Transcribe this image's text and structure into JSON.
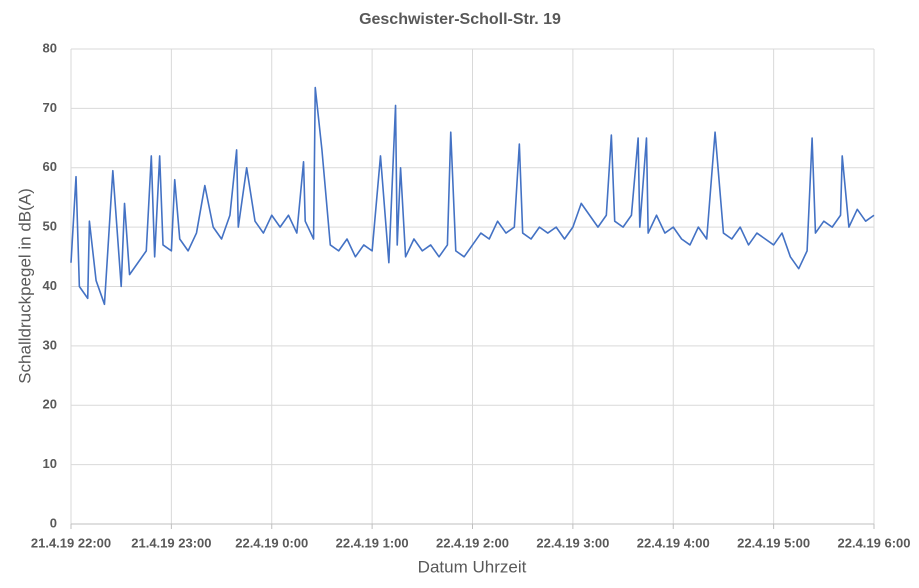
{
  "chart_data": {
    "type": "line",
    "title": "Geschwister-Scholl-Str. 19",
    "x_label": "Datum Uhrzeit",
    "y_label": "Schalldruckpegel in dB(A)",
    "color": "#4472c4",
    "grid": true,
    "xlim": [
      "21.4.19 22:00",
      "22.4.19 6:00"
    ],
    "xticks": [
      "21.4.19 22:00",
      "21.4.19 23:00",
      "22.4.19 0:00",
      "22.4.19 1:00",
      "22.4.19 2:00",
      "22.4.19 3:00",
      "22.4.19 4:00",
      "22.4.19 5:00",
      "22.4.19 6:00"
    ],
    "ylim": [
      0,
      80
    ],
    "yticks": [
      0,
      10,
      20,
      30,
      40,
      50,
      60,
      70,
      80
    ],
    "x": [
      "21.4.19 22:00",
      "21.4.19 22:03",
      "21.4.19 22:05",
      "21.4.19 22:10",
      "21.4.19 22:11",
      "21.4.19 22:15",
      "21.4.19 22:20",
      "21.4.19 22:25",
      "21.4.19 22:30",
      "21.4.19 22:32",
      "21.4.19 22:35",
      "21.4.19 22:40",
      "21.4.19 22:45",
      "21.4.19 22:48",
      "21.4.19 22:50",
      "21.4.19 22:53",
      "21.4.19 22:55",
      "21.4.19 23:00",
      "21.4.19 23:02",
      "21.4.19 23:05",
      "21.4.19 23:10",
      "21.4.19 23:15",
      "21.4.19 23:20",
      "21.4.19 23:25",
      "21.4.19 23:30",
      "21.4.19 23:35",
      "21.4.19 23:39",
      "21.4.19 23:40",
      "21.4.19 23:45",
      "21.4.19 23:50",
      "21.4.19 23:55",
      "22.4.19 0:00",
      "22.4.19 0:05",
      "22.4.19 0:10",
      "22.4.19 0:15",
      "22.4.19 0:19",
      "22.4.19 0:20",
      "22.4.19 0:25",
      "22.4.19 0:26",
      "22.4.19 0:30",
      "22.4.19 0:35",
      "22.4.19 0:40",
      "22.4.19 0:45",
      "22.4.19 0:50",
      "22.4.19 0:55",
      "22.4.19 1:00",
      "22.4.19 1:05",
      "22.4.19 1:10",
      "22.4.19 1:14",
      "22.4.19 1:15",
      "22.4.19 1:17",
      "22.4.19 1:20",
      "22.4.19 1:25",
      "22.4.19 1:30",
      "22.4.19 1:35",
      "22.4.19 1:40",
      "22.4.19 1:45",
      "22.4.19 1:47",
      "22.4.19 1:50",
      "22.4.19 1:55",
      "22.4.19 2:00",
      "22.4.19 2:05",
      "22.4.19 2:10",
      "22.4.19 2:15",
      "22.4.19 2:20",
      "22.4.19 2:25",
      "22.4.19 2:28",
      "22.4.19 2:30",
      "22.4.19 2:35",
      "22.4.19 2:40",
      "22.4.19 2:45",
      "22.4.19 2:50",
      "22.4.19 2:55",
      "22.4.19 3:00",
      "22.4.19 3:05",
      "22.4.19 3:10",
      "22.4.19 3:15",
      "22.4.19 3:20",
      "22.4.19 3:23",
      "22.4.19 3:25",
      "22.4.19 3:30",
      "22.4.19 3:35",
      "22.4.19 3:39",
      "22.4.19 3:40",
      "22.4.19 3:44",
      "22.4.19 3:45",
      "22.4.19 3:50",
      "22.4.19 3:55",
      "22.4.19 4:00",
      "22.4.19 4:05",
      "22.4.19 4:10",
      "22.4.19 4:15",
      "22.4.19 4:20",
      "22.4.19 4:25",
      "22.4.19 4:30",
      "22.4.19 4:35",
      "22.4.19 4:40",
      "22.4.19 4:45",
      "22.4.19 4:50",
      "22.4.19 4:55",
      "22.4.19 5:00",
      "22.4.19 5:05",
      "22.4.19 5:10",
      "22.4.19 5:15",
      "22.4.19 5:20",
      "22.4.19 5:23",
      "22.4.19 5:25",
      "22.4.19 5:30",
      "22.4.19 5:35",
      "22.4.19 5:40",
      "22.4.19 5:41",
      "22.4.19 5:45",
      "22.4.19 5:50",
      "22.4.19 5:55",
      "22.4.19 6:00"
    ],
    "values": [
      44,
      58.5,
      40,
      38,
      51,
      41,
      37,
      59.5,
      40,
      54,
      42,
      44,
      46,
      62,
      45,
      62,
      47,
      46,
      58,
      48,
      46,
      49,
      57,
      50,
      48,
      52,
      63,
      50,
      60,
      51,
      49,
      52,
      50,
      52,
      49,
      61,
      51,
      48,
      73.5,
      63,
      47,
      46,
      48,
      45,
      47,
      46,
      62,
      44,
      70.5,
      47,
      60,
      45,
      48,
      46,
      47,
      45,
      47,
      66,
      46,
      45,
      47,
      49,
      48,
      51,
      49,
      50,
      64,
      49,
      48,
      50,
      49,
      50,
      48,
      50,
      54,
      52,
      50,
      52,
      65.5,
      51,
      50,
      52,
      65,
      50,
      65,
      49,
      52,
      49,
      50,
      48,
      47,
      50,
      48,
      66,
      49,
      48,
      50,
      47,
      49,
      48,
      47,
      49,
      45,
      43,
      46,
      65,
      49,
      51,
      50,
      52,
      62,
      50,
      53,
      51,
      52
    ]
  }
}
